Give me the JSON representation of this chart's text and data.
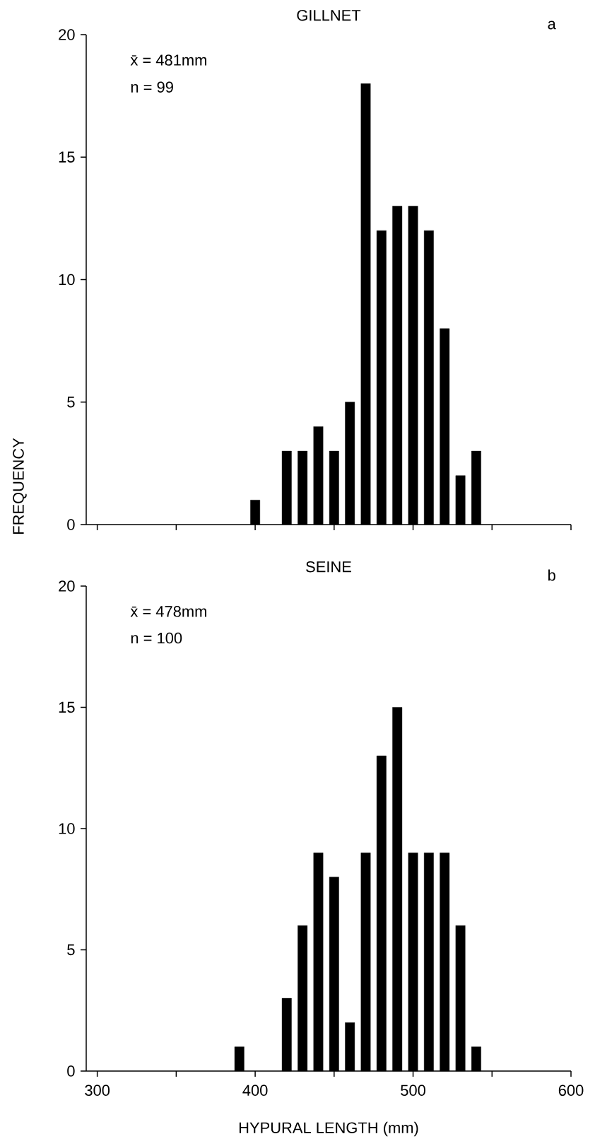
{
  "chart_data": [
    {
      "type": "bar",
      "title": "GILLNET",
      "ylabel": "FREQUENCY",
      "annotations": [
        "x̄ = 481mm",
        "n = 99",
        "a"
      ],
      "x": [
        400,
        420,
        430,
        440,
        450,
        460,
        470,
        480,
        490,
        500,
        510,
        520,
        530,
        540
      ],
      "values": [
        1,
        3,
        3,
        4,
        3,
        5,
        18,
        12,
        13,
        13,
        12,
        8,
        2,
        3
      ],
      "color": "#000000",
      "xlim": [
        293,
        600
      ],
      "xticks": [
        {
          "value": 300,
          "label": null
        },
        {
          "value": 350,
          "label": null
        },
        {
          "value": 400,
          "label": null
        },
        {
          "value": 450,
          "label": null
        },
        {
          "value": 500,
          "label": null
        },
        {
          "value": 550,
          "label": null
        },
        {
          "value": 600,
          "label": null
        }
      ],
      "ylim": [
        0,
        20
      ],
      "yticks": [
        0,
        5,
        10,
        15,
        20
      ],
      "tick_labels": "y"
    },
    {
      "type": "bar",
      "title": "SEINE",
      "xlabel": "HYPURAL   LENGTH (mm)",
      "annotations": [
        "x̄ = 478mm",
        "n = 100",
        "b"
      ],
      "x": [
        390,
        420,
        430,
        440,
        450,
        460,
        470,
        480,
        490,
        500,
        510,
        520,
        530,
        540
      ],
      "values": [
        1,
        3,
        6,
        9,
        8,
        2,
        9,
        13,
        15,
        9,
        9,
        9,
        6,
        1
      ],
      "color": "#000000",
      "xlim": [
        293,
        600
      ],
      "xticks": [
        300,
        {
          "value": 350,
          "label": null
        },
        400,
        {
          "value": 450,
          "label": null
        },
        500,
        {
          "value": 550,
          "label": null
        },
        600
      ],
      "ylim": [
        0,
        20
      ],
      "yticks": [
        0,
        5,
        10,
        15,
        20
      ]
    }
  ]
}
